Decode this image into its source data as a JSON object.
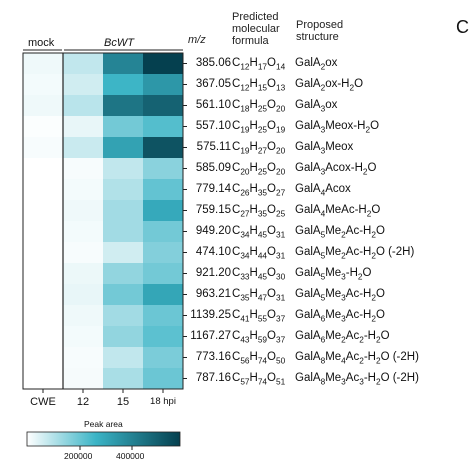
{
  "panel_letter": "C",
  "headers": {
    "mz": "m/z",
    "formula": [
      "Predicted",
      "molecular",
      "formula"
    ],
    "structure": [
      "Proposed",
      "structure"
    ]
  },
  "group_labels": {
    "mock": "mock",
    "bcwt": "BcWT"
  },
  "colorbar": {
    "title": "Peak area",
    "ticks": [
      "200000",
      "400000"
    ]
  },
  "chart_data": {
    "type": "heatmap",
    "title": "",
    "xlabel": "",
    "ylabel": "",
    "columns": [
      "CWE",
      "12",
      "15",
      "18 hpi"
    ],
    "groups": [
      {
        "name": "mock",
        "columns": [
          "CWE"
        ]
      },
      {
        "name": "BcWT",
        "columns": [
          "12",
          "15",
          "18 hpi"
        ]
      }
    ],
    "rows": [
      {
        "mz": "385.06",
        "formula": "C12H17O14",
        "structure": "GalA2ox"
      },
      {
        "mz": "367.05",
        "formula": "C12H15O13",
        "structure": "GalA2ox-H2O"
      },
      {
        "mz": "561.10",
        "formula": "C18H25O20",
        "structure": "GalA3ox"
      },
      {
        "mz": "557.10",
        "formula": "C19H25O19",
        "structure": "GalA3Meox-H2O"
      },
      {
        "mz": "575.11",
        "formula": "C19H27O20",
        "structure": "GalA3Meox"
      },
      {
        "mz": "585.09",
        "formula": "C20H25O20",
        "structure": "GalA3Acox-H2O"
      },
      {
        "mz": "779.14",
        "formula": "C26H35O27",
        "structure": "GalA4Acox"
      },
      {
        "mz": "759.15",
        "formula": "C27H35O25",
        "structure": "GalA4MeAc-H2O"
      },
      {
        "mz": "949.20",
        "formula": "C34H45O31",
        "structure": "GalA5Me2Ac-H2O"
      },
      {
        "mz": "474.10",
        "formula": "C34H44O31",
        "structure": "GalA5Me2Ac-H2O (-2H)"
      },
      {
        "mz": "921.20",
        "formula": "C33H45O30",
        "structure": "GalA5Me3-H2O"
      },
      {
        "mz": "963.21",
        "formula": "C35H47O31",
        "structure": "GalA5Me3Ac-H2O"
      },
      {
        "mz": "1139.25",
        "formula": "C41H55O37",
        "structure": "GalA6Me3Ac-H2O"
      },
      {
        "mz": "1167.27",
        "formula": "C43H59O37",
        "structure": "GalA6Me2Ac2-H2O"
      },
      {
        "mz": "773.16",
        "formula": "C56H74O50",
        "structure": "GalA8Me4Ac2-H2O (-2H)"
      },
      {
        "mz": "787.16",
        "formula": "C57H74O51",
        "structure": "GalA8Me3Ac3-H2O (-2H)"
      }
    ],
    "values": [
      [
        20000,
        80000,
        380000,
        560000
      ],
      [
        15000,
        60000,
        250000,
        330000
      ],
      [
        20000,
        90000,
        420000,
        470000
      ],
      [
        5000,
        30000,
        180000,
        220000
      ],
      [
        10000,
        70000,
        300000,
        510000
      ],
      [
        0,
        10000,
        80000,
        150000
      ],
      [
        0,
        15000,
        100000,
        200000
      ],
      [
        0,
        20000,
        120000,
        280000
      ],
      [
        0,
        15000,
        120000,
        180000
      ],
      [
        0,
        10000,
        60000,
        160000
      ],
      [
        0,
        25000,
        140000,
        180000
      ],
      [
        0,
        30000,
        180000,
        290000
      ],
      [
        0,
        20000,
        120000,
        190000
      ],
      [
        0,
        15000,
        140000,
        210000
      ],
      [
        0,
        10000,
        80000,
        170000
      ],
      [
        0,
        12000,
        110000,
        190000
      ]
    ],
    "color_scale": {
      "min": 0,
      "max": 560000,
      "low": "#ffffff",
      "mid": "#3bb4c6",
      "high": "#05404f"
    }
  }
}
